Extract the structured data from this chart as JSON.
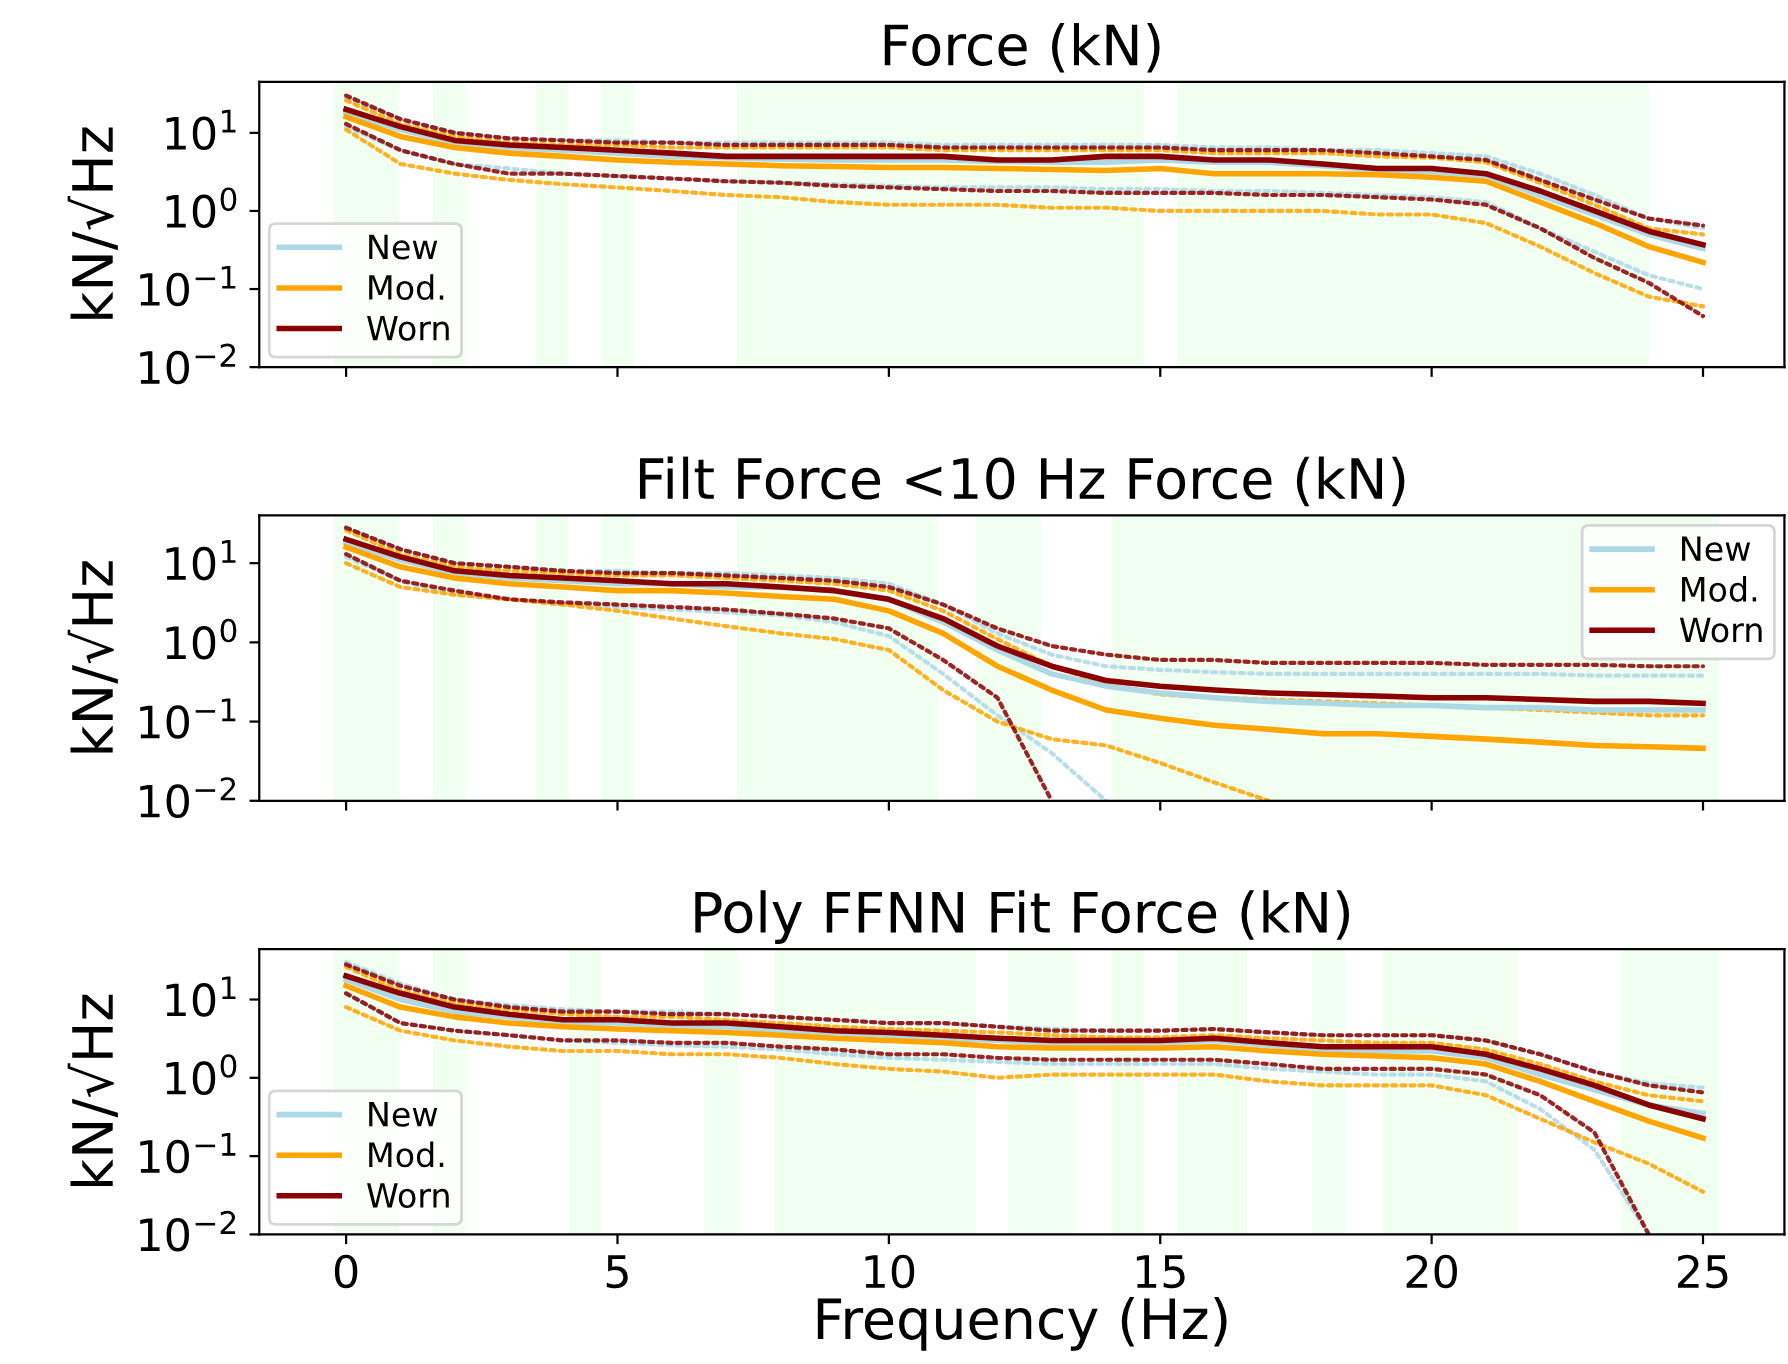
{
  "chart_data": [
    {
      "type": "line",
      "title": "Force (kN)",
      "ylabel": "kN/√Hz",
      "log": "y",
      "grid": false,
      "legend": "bottom left",
      "tick_labels": "y",
      "line_style": "solid",
      "marker": "none",
      "x": [
        0,
        1,
        2,
        3,
        4,
        5,
        6,
        7,
        8,
        9,
        10,
        11,
        12,
        13,
        14,
        15,
        16,
        17,
        18,
        19,
        20,
        21,
        22,
        23,
        24,
        25
      ],
      "xlim": [
        -1.6,
        26.5
      ],
      "xticks": [
        0,
        5,
        10,
        15,
        20,
        25
      ],
      "ylim": [
        0.01,
        45
      ],
      "yticks": [
        {
          "value": 0.01,
          "label": "10$^{−2}$"
        },
        {
          "value": 0.1,
          "label": "10$^{−1}$"
        },
        {
          "value": 1,
          "label": "10$^{0}$"
        },
        {
          "value": 10,
          "label": "10$^{1}$"
        }
      ],
      "bands": [
        {
          "axis": "x",
          "from": -0.23,
          "to": 0.98,
          "color": "#f0fff0"
        },
        {
          "axis": "x",
          "from": 1.6,
          "to": 2.2,
          "color": "#f0fff0"
        },
        {
          "axis": "x",
          "from": 3.5,
          "to": 4.1,
          "color": "#f0fff0"
        },
        {
          "axis": "x",
          "from": 4.7,
          "to": 5.3,
          "color": "#f0fff0"
        },
        {
          "axis": "x",
          "from": 7.2,
          "to": 14.7,
          "color": "#f0fff0"
        },
        {
          "axis": "x",
          "from": 15.3,
          "to": 24.0,
          "color": "#f0fff0"
        }
      ],
      "series": [
        {
          "color": "#add8e6",
          "line_style": "dotted",
          "values": [
            28,
            15,
            10,
            8.5,
            8,
            8,
            7.5,
            7.5,
            7.5,
            7.5,
            7.5,
            7,
            7,
            7,
            7,
            7,
            6.5,
            6.5,
            6,
            6,
            5.5,
            5,
            3,
            1.6,
            0.8,
            0.6
          ]
        },
        {
          "color": "#add8e6",
          "line_style": "dotted",
          "values": [
            12,
            6,
            4,
            3.5,
            3,
            2.8,
            2.6,
            2.4,
            2.3,
            2.2,
            2.1,
            2,
            2,
            2,
            1.9,
            1.9,
            1.8,
            1.8,
            1.7,
            1.6,
            1.5,
            1.3,
            0.6,
            0.3,
            0.15,
            0.1
          ]
        },
        {
          "color": "#ffa500",
          "line_style": "dotted",
          "values": [
            26,
            13,
            9,
            7.5,
            7,
            7,
            6.5,
            6.5,
            6.5,
            6.5,
            6.5,
            6,
            6,
            6,
            6,
            6,
            5.5,
            5.5,
            5.5,
            5,
            4.8,
            4.2,
            2.3,
            1.2,
            0.6,
            0.5
          ]
        },
        {
          "color": "#ffa500",
          "line_style": "dotted",
          "values": [
            11,
            4,
            3,
            2.5,
            2.2,
            2,
            1.8,
            1.6,
            1.5,
            1.3,
            1.2,
            1.2,
            1.2,
            1.1,
            1.1,
            1.0,
            1.0,
            1.0,
            1.0,
            0.9,
            0.9,
            0.7,
            0.35,
            0.16,
            0.08,
            0.06
          ]
        },
        {
          "color": "#8b0000",
          "line_style": "dotted",
          "values": [
            30,
            15,
            10,
            8.5,
            8,
            7.5,
            7.5,
            7,
            7,
            7,
            7,
            6.5,
            6.5,
            6.5,
            6.5,
            6.5,
            6,
            6,
            6,
            5.5,
            5,
            4.5,
            2.5,
            1.4,
            0.8,
            0.65
          ]
        },
        {
          "color": "#8b0000",
          "line_style": "dotted",
          "values": [
            13,
            6,
            4,
            3,
            3,
            2.8,
            2.6,
            2.4,
            2.3,
            2.1,
            2.0,
            1.9,
            1.8,
            1.8,
            1.7,
            1.7,
            1.7,
            1.6,
            1.6,
            1.5,
            1.4,
            1.2,
            0.6,
            0.25,
            0.12,
            0.045
          ]
        },
        {
          "name": "New",
          "color": "#add8e6",
          "values": [
            18,
            11,
            7.5,
            6.5,
            6,
            5.5,
            5,
            4.8,
            4.6,
            4.5,
            4.5,
            4.5,
            4.3,
            4.2,
            4.2,
            4.5,
            4.2,
            4.2,
            3.8,
            3.3,
            3.2,
            2.8,
            1.6,
            0.9,
            0.5,
            0.33
          ]
        },
        {
          "name": "Mod.",
          "color": "#ffa500",
          "values": [
            16,
            9,
            6.5,
            5.5,
            5,
            4.5,
            4.2,
            4,
            3.8,
            3.7,
            3.6,
            3.6,
            3.5,
            3.4,
            3.3,
            3.5,
            3,
            3,
            3,
            2.9,
            2.7,
            2.4,
            1.3,
            0.7,
            0.35,
            0.22
          ]
        },
        {
          "name": "Worn",
          "color": "#8b0000",
          "values": [
            20,
            12,
            8,
            7,
            6.5,
            6,
            5.5,
            5,
            5,
            5,
            5,
            5,
            4.5,
            4.5,
            5,
            5,
            4.5,
            4.5,
            4,
            3.5,
            3.5,
            3,
            1.8,
            1,
            0.55,
            0.37
          ]
        }
      ]
    },
    {
      "type": "line",
      "title": "Filt Force <10 Hz Force (kN)",
      "ylabel": "kN/√Hz",
      "log": "y",
      "grid": false,
      "legend": "top right",
      "tick_labels": "y",
      "line_style": "solid",
      "marker": "none",
      "x": [
        0,
        1,
        2,
        3,
        4,
        5,
        6,
        7,
        8,
        9,
        10,
        11,
        12,
        13,
        14,
        15,
        16,
        17,
        18,
        19,
        20,
        21,
        22,
        23,
        24,
        25
      ],
      "xlim": [
        -1.6,
        26.5
      ],
      "xticks": [
        0,
        5,
        10,
        15,
        20,
        25
      ],
      "ylim": [
        0.01,
        40
      ],
      "yticks": [
        {
          "value": 0.01,
          "label": "10$^{−2}$"
        },
        {
          "value": 0.1,
          "label": "10$^{−1}$"
        },
        {
          "value": 1,
          "label": "10$^{0}$"
        },
        {
          "value": 10,
          "label": "10$^{1}$"
        }
      ],
      "bands": [
        {
          "axis": "x",
          "from": -0.23,
          "to": 0.98,
          "color": "#f0fff0"
        },
        {
          "axis": "x",
          "from": 1.6,
          "to": 2.2,
          "color": "#f0fff0"
        },
        {
          "axis": "x",
          "from": 3.5,
          "to": 4.1,
          "color": "#f0fff0"
        },
        {
          "axis": "x",
          "from": 4.7,
          "to": 5.3,
          "color": "#f0fff0"
        },
        {
          "axis": "x",
          "from": 7.2,
          "to": 10.9,
          "color": "#f0fff0"
        },
        {
          "axis": "x",
          "from": 11.6,
          "to": 12.8,
          "color": "#f0fff0"
        },
        {
          "axis": "x",
          "from": 14.1,
          "to": 25.3,
          "color": "#f0fff0"
        }
      ],
      "series": [
        {
          "color": "#add8e6",
          "line_style": "dotted",
          "values": [
            28,
            15,
            10,
            9,
            8,
            8,
            7.5,
            7.5,
            7,
            6.5,
            5.5,
            3,
            1.3,
            0.7,
            0.5,
            0.45,
            0.42,
            0.4,
            0.4,
            0.4,
            0.4,
            0.4,
            0.4,
            0.38,
            0.38,
            0.38
          ]
        },
        {
          "color": "#add8e6",
          "line_style": "dotted",
          "values": [
            12,
            6,
            4,
            3.5,
            3,
            2.8,
            2.6,
            2.4,
            2.2,
            1.8,
            1.2,
            0.4,
            0.12,
            0.04,
            0.01,
            null,
            null,
            null,
            null,
            null,
            null,
            null,
            null,
            null,
            null,
            null
          ]
        },
        {
          "color": "#ffa500",
          "line_style": "dotted",
          "values": [
            26,
            13,
            9,
            8,
            7.5,
            7,
            7,
            6.5,
            6,
            5.5,
            4.5,
            2.5,
            1.1,
            0.5,
            0.3,
            0.22,
            0.2,
            0.19,
            0.18,
            0.17,
            0.16,
            0.15,
            0.14,
            0.13,
            0.12,
            0.12
          ]
        },
        {
          "color": "#ffa500",
          "line_style": "dotted",
          "values": [
            10,
            5,
            4,
            3.5,
            3,
            2.5,
            2,
            1.6,
            1.3,
            1.1,
            0.8,
            0.25,
            0.1,
            0.06,
            0.05,
            0.03,
            0.017,
            0.01,
            null,
            null,
            null,
            null,
            null,
            null,
            null,
            null
          ]
        },
        {
          "color": "#8b0000",
          "line_style": "dotted",
          "values": [
            28,
            15,
            10,
            9,
            8,
            7.5,
            7.5,
            7,
            6.5,
            6,
            5,
            3,
            1.5,
            0.9,
            0.7,
            0.6,
            0.6,
            0.55,
            0.55,
            0.55,
            0.55,
            0.52,
            0.52,
            0.52,
            0.5,
            0.5
          ]
        },
        {
          "color": "#8b0000",
          "line_style": "dotted",
          "values": [
            13,
            6,
            4.5,
            3.5,
            3.2,
            3,
            2.8,
            2.6,
            2.3,
            2,
            1.5,
            0.6,
            0.2,
            0.01,
            null,
            null,
            null,
            null,
            null,
            null,
            null,
            null,
            null,
            null,
            null,
            null
          ]
        },
        {
          "name": "New",
          "color": "#add8e6",
          "values": [
            18,
            11,
            7.5,
            6.5,
            6,
            5.5,
            5.5,
            5,
            5,
            4.5,
            3.5,
            1.8,
            0.8,
            0.4,
            0.28,
            0.23,
            0.2,
            0.18,
            0.17,
            0.16,
            0.16,
            0.15,
            0.15,
            0.14,
            0.14,
            0.14
          ]
        },
        {
          "name": "Mod.",
          "color": "#ffa500",
          "values": [
            16,
            9,
            6.5,
            5.5,
            5,
            4.5,
            4.5,
            4.2,
            3.8,
            3.5,
            2.5,
            1.3,
            0.5,
            0.25,
            0.14,
            0.11,
            0.09,
            0.08,
            0.07,
            0.07,
            0.065,
            0.06,
            0.055,
            0.05,
            0.048,
            0.046
          ]
        },
        {
          "name": "Worn",
          "color": "#8b0000",
          "values": [
            20,
            12,
            8,
            7,
            6.5,
            6,
            5.5,
            5.5,
            5,
            4.5,
            3.5,
            2,
            0.9,
            0.5,
            0.33,
            0.28,
            0.25,
            0.23,
            0.22,
            0.21,
            0.2,
            0.2,
            0.19,
            0.18,
            0.18,
            0.17
          ]
        }
      ]
    },
    {
      "type": "line",
      "title": "Poly FFNN Fit Force (kN)",
      "ylabel": "kN/√Hz",
      "xlabel": "Frequency (Hz)",
      "log": "y",
      "grid": false,
      "legend": "bottom left",
      "line_style": "solid",
      "marker": "none",
      "x": [
        0,
        1,
        2,
        3,
        4,
        5,
        6,
        7,
        8,
        9,
        10,
        11,
        12,
        13,
        14,
        15,
        16,
        17,
        18,
        19,
        20,
        21,
        22,
        23,
        24,
        25
      ],
      "xlim": [
        -1.6,
        26.5
      ],
      "xticks": [
        0,
        5,
        10,
        15,
        20,
        25
      ],
      "ylim": [
        0.01,
        44
      ],
      "yticks": [
        {
          "value": 0.01,
          "label": "10$^{−2}$"
        },
        {
          "value": 0.1,
          "label": "10$^{−1}$"
        },
        {
          "value": 1,
          "label": "10$^{0}$"
        },
        {
          "value": 10,
          "label": "10$^{1}$"
        }
      ],
      "bands": [
        {
          "axis": "x",
          "from": -0.23,
          "to": 0.98,
          "color": "#f0fff0"
        },
        {
          "axis": "x",
          "from": 1.6,
          "to": 2.2,
          "color": "#f0fff0"
        },
        {
          "axis": "x",
          "from": 4.1,
          "to": 4.7,
          "color": "#f0fff0"
        },
        {
          "axis": "x",
          "from": 6.6,
          "to": 7.2,
          "color": "#f0fff0"
        },
        {
          "axis": "x",
          "from": 7.9,
          "to": 11.6,
          "color": "#f0fff0"
        },
        {
          "axis": "x",
          "from": 12.2,
          "to": 13.4,
          "color": "#f0fff0"
        },
        {
          "axis": "x",
          "from": 14.1,
          "to": 14.7,
          "color": "#f0fff0"
        },
        {
          "axis": "x",
          "from": 15.3,
          "to": 16.6,
          "color": "#f0fff0"
        },
        {
          "axis": "x",
          "from": 17.8,
          "to": 18.4,
          "color": "#f0fff0"
        },
        {
          "axis": "x",
          "from": 19.1,
          "to": 21.6,
          "color": "#f0fff0"
        },
        {
          "axis": "x",
          "from": 23.5,
          "to": 25.3,
          "color": "#f0fff0"
        }
      ],
      "series": [
        {
          "color": "#add8e6",
          "line_style": "dotted",
          "values": [
            30,
            16,
            10,
            8.5,
            7.5,
            7,
            7,
            6.5,
            6,
            5.5,
            5,
            5,
            4.5,
            4.2,
            4,
            4,
            4.2,
            3.8,
            3.5,
            3.5,
            3.5,
            3,
            2,
            1.2,
            0.85,
            0.75
          ]
        },
        {
          "color": "#add8e6",
          "line_style": "dotted",
          "values": [
            12,
            5,
            4,
            3.5,
            3,
            2.8,
            2.6,
            2.5,
            2.3,
            2,
            1.8,
            1.7,
            1.6,
            1.5,
            1.5,
            1.5,
            1.5,
            1.3,
            1.2,
            1.1,
            1.1,
            0.9,
            0.4,
            0.12,
            0.01,
            null
          ]
        },
        {
          "color": "#ffa500",
          "line_style": "dotted",
          "values": [
            26,
            13,
            9,
            7.5,
            6.5,
            6,
            6,
            5.5,
            5,
            4.5,
            4.2,
            4,
            3.8,
            3.5,
            3.3,
            3.3,
            3.5,
            3.2,
            3,
            2.8,
            2.8,
            2.3,
            1.5,
            0.9,
            0.6,
            0.5
          ]
        },
        {
          "color": "#ffa500",
          "line_style": "dotted",
          "values": [
            8,
            4,
            3,
            2.5,
            2.2,
            2.2,
            2,
            2,
            1.8,
            1.5,
            1.3,
            1.2,
            1.0,
            1.1,
            1.1,
            1.1,
            1.1,
            0.9,
            0.8,
            0.8,
            0.8,
            0.6,
            0.3,
            0.15,
            0.08,
            0.035
          ]
        },
        {
          "color": "#8b0000",
          "line_style": "dotted",
          "values": [
            28,
            15,
            10,
            8,
            7,
            7,
            6.5,
            6.5,
            6,
            5.5,
            5,
            5,
            4.5,
            4,
            4,
            4,
            4.2,
            3.8,
            3.5,
            3.5,
            3.5,
            3,
            2,
            1.2,
            0.8,
            0.65
          ]
        },
        {
          "color": "#8b0000",
          "line_style": "dotted",
          "values": [
            12,
            5,
            4,
            3.5,
            3,
            3,
            2.8,
            2.8,
            2.5,
            2.3,
            2,
            2,
            1.8,
            1.7,
            1.7,
            1.7,
            1.7,
            1.5,
            1.3,
            1.3,
            1.3,
            1.1,
            0.6,
            0.2,
            0.01,
            null
          ]
        },
        {
          "name": "New",
          "color": "#add8e6",
          "values": [
            18,
            10,
            7,
            6,
            5,
            5,
            4.5,
            4.5,
            4,
            3.8,
            3.5,
            3.2,
            3,
            2.8,
            2.8,
            2.8,
            3,
            2.6,
            2.3,
            2.2,
            2.2,
            1.8,
            1.1,
            0.7,
            0.45,
            0.35
          ]
        },
        {
          "name": "Mod.",
          "color": "#ffa500",
          "values": [
            15,
            8,
            6,
            5,
            4.5,
            4.2,
            4,
            3.8,
            3.5,
            3.2,
            3,
            2.8,
            2.5,
            2.4,
            2.4,
            2.4,
            2.5,
            2.2,
            2,
            1.9,
            1.8,
            1.5,
            0.9,
            0.5,
            0.28,
            0.17
          ]
        },
        {
          "name": "Worn",
          "color": "#8b0000",
          "values": [
            20,
            12,
            8,
            6.5,
            5.5,
            5.5,
            5,
            5,
            4.5,
            4,
            3.8,
            3.5,
            3.2,
            3,
            3,
            3,
            3.2,
            2.8,
            2.5,
            2.5,
            2.5,
            2,
            1.3,
            0.8,
            0.45,
            0.3
          ]
        }
      ]
    }
  ]
}
